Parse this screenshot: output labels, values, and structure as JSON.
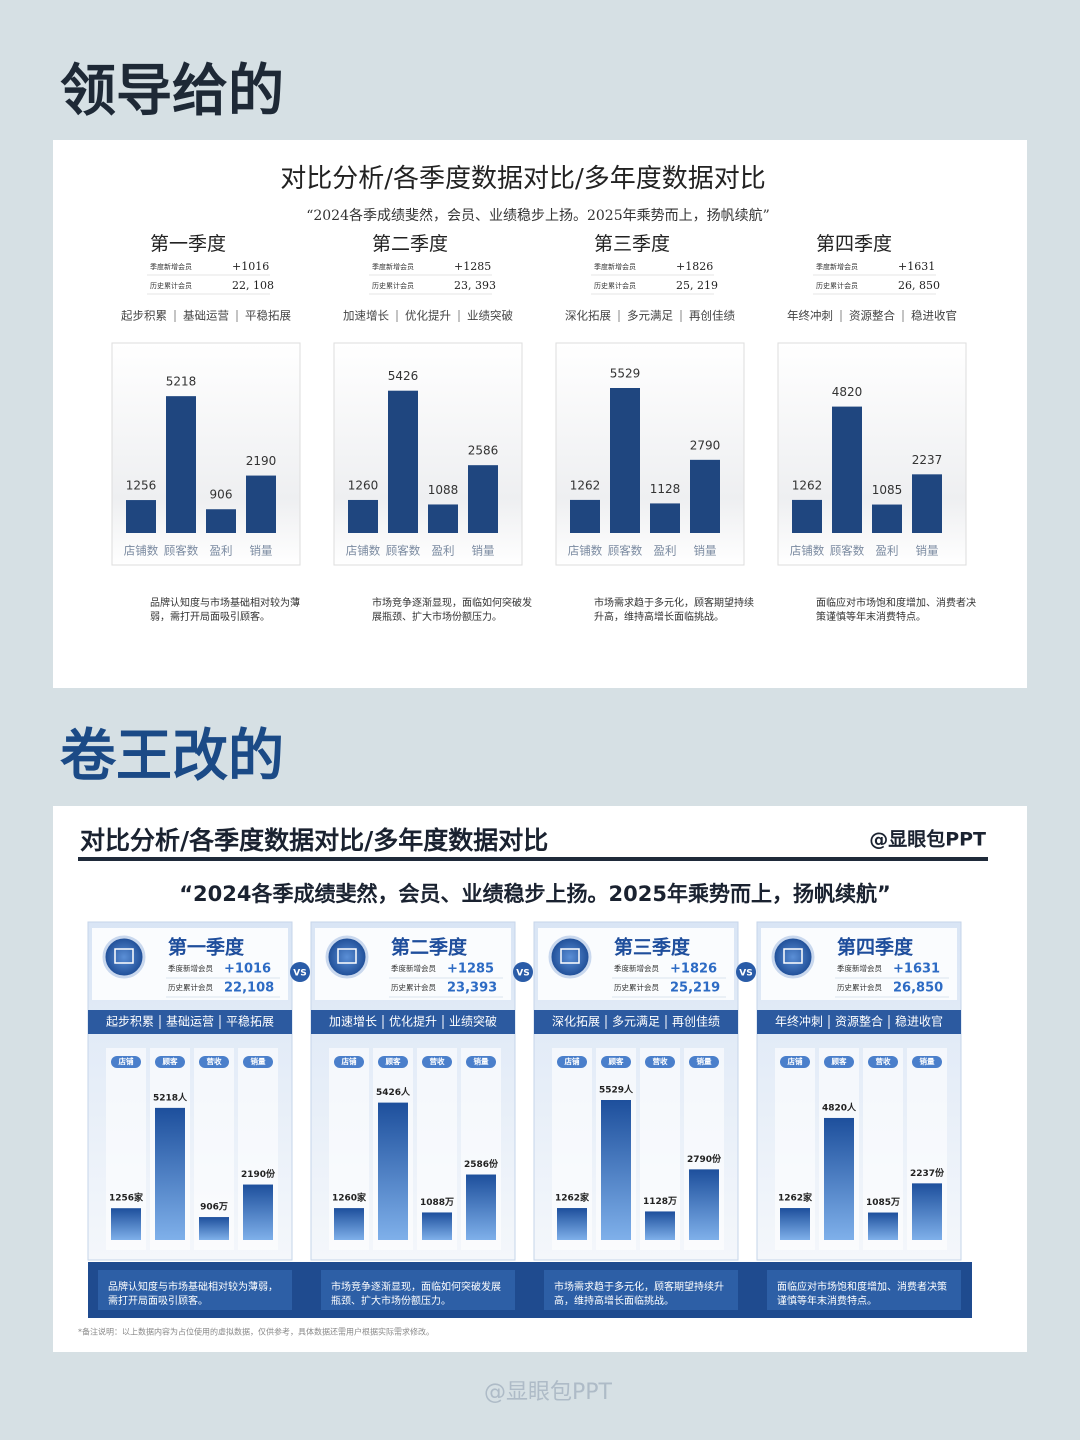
{
  "header_top": "领导给的",
  "header_bottom": "卷王改的",
  "before": {
    "title": "对比分析/各季度数据对比/多年度数据对比",
    "quote": "“2024各季成绩斐然，会员、业绩稳步上扬。2025年乘势而上，扬帆续航”",
    "quarters": [
      {
        "name": "第一季度",
        "new_label": "季度新增会员",
        "new": "+1016",
        "total_label": "历史累计会员",
        "total": "22, 108",
        "tags": [
          "起步积累",
          "基础运营",
          "平稳拓展"
        ],
        "categories": [
          "店铺数",
          "顾客数",
          "盈利",
          "销量"
        ],
        "values": [
          1256,
          5218,
          906,
          2190
        ],
        "desc": "品牌认知度与市场基础相对较为薄弱，需打开局面吸引顾客。"
      },
      {
        "name": "第二季度",
        "new_label": "季度新增会员",
        "new": "+1285",
        "total_label": "历史累计会员",
        "total": "23, 393",
        "tags": [
          "加速增长",
          "优化提升",
          "业绩突破"
        ],
        "categories": [
          "店铺数",
          "顾客数",
          "盈利",
          "销量"
        ],
        "values": [
          1260,
          5426,
          1088,
          2586
        ],
        "desc": "市场竞争逐渐显现，面临如何突破发展瓶颈、扩大市场份额压力。"
      },
      {
        "name": "第三季度",
        "new_label": "季度新增会员",
        "new": "+1826",
        "total_label": "历史累计会员",
        "total": "25, 219",
        "tags": [
          "深化拓展",
          "多元满足",
          "再创佳绩"
        ],
        "categories": [
          "店铺数",
          "顾客数",
          "盈利",
          "销量"
        ],
        "values": [
          1262,
          5529,
          1128,
          2790
        ],
        "desc": "市场需求趋于多元化，顾客期望持续升高，维持高增长面临挑战。"
      },
      {
        "name": "第四季度",
        "new_label": "季度新增会员",
        "new": "+1631",
        "total_label": "历史累计会员",
        "total": "26, 850",
        "tags": [
          "年终冲刺",
          "资源整合",
          "稳进收官"
        ],
        "categories": [
          "店铺数",
          "顾客数",
          "盈利",
          "销量"
        ],
        "values": [
          1262,
          4820,
          1085,
          2237
        ],
        "desc": "面临应对市场饱和度增加、消费者决策谨慎等年末消费特点。"
      }
    ]
  },
  "after": {
    "title": "对比分析/各季度数据对比/多年度数据对比",
    "brand": "@显眼包PPT",
    "quote": "“2024各季成绩斐然，会员、业绩稳步上扬。2025年乘势而上，扬帆续航”",
    "vs": "VS",
    "quarters": [
      {
        "name": "第一季度",
        "new_label": "季度新增会员",
        "new": "+1016",
        "total_label": "历史累计会员",
        "total": "22,108",
        "tags": [
          "起步积累",
          "基础运营",
          "平稳拓展"
        ],
        "categories": [
          "店铺",
          "顾客",
          "营收",
          "销量"
        ],
        "values": [
          1256,
          5218,
          906,
          2190
        ],
        "value_labels": [
          "1256家",
          "5218人",
          "906万",
          "2190份"
        ],
        "desc": "品牌认知度与市场基础相对较为薄弱，需打开局面吸引顾客。"
      },
      {
        "name": "第二季度",
        "new_label": "季度新增会员",
        "new": "+1285",
        "total_label": "历史累计会员",
        "total": "23,393",
        "tags": [
          "加速增长",
          "优化提升",
          "业绩突破"
        ],
        "categories": [
          "店铺",
          "顾客",
          "营收",
          "销量"
        ],
        "values": [
          1260,
          5426,
          1088,
          2586
        ],
        "value_labels": [
          "1260家",
          "5426人",
          "1088万",
          "2586份"
        ],
        "desc": "市场竞争逐渐显现，面临如何突破发展瓶颈、扩大市场份额压力。"
      },
      {
        "name": "第三季度",
        "new_label": "季度新增会员",
        "new": "+1826",
        "total_label": "历史累计会员",
        "total": "25,219",
        "tags": [
          "深化拓展",
          "多元满足",
          "再创佳绩"
        ],
        "categories": [
          "店铺",
          "顾客",
          "营收",
          "销量"
        ],
        "values": [
          1262,
          5529,
          1128,
          2790
        ],
        "value_labels": [
          "1262家",
          "5529人",
          "1128万",
          "2790份"
        ],
        "desc": "市场需求趋于多元化，顾客期望持续升高，维持高增长面临挑战。"
      },
      {
        "name": "第四季度",
        "new_label": "季度新增会员",
        "new": "+1631",
        "total_label": "历史累计会员",
        "total": "26,850",
        "tags": [
          "年终冲刺",
          "资源整合",
          "稳进收官"
        ],
        "categories": [
          "店铺",
          "顾客",
          "营收",
          "销量"
        ],
        "values": [
          1262,
          4820,
          1085,
          2237
        ],
        "value_labels": [
          "1262家",
          "4820人",
          "1085万",
          "2237份"
        ],
        "desc": "面临应对市场饱和度增加、消费者决策谨慎等年末消费特点。"
      }
    ],
    "note": "*备注说明：以上数据内容为占位使用的虚拟数据，仅供参考，具体数据还需用户根据实际需求修改。"
  },
  "watermark": "@显眼包PPT"
}
